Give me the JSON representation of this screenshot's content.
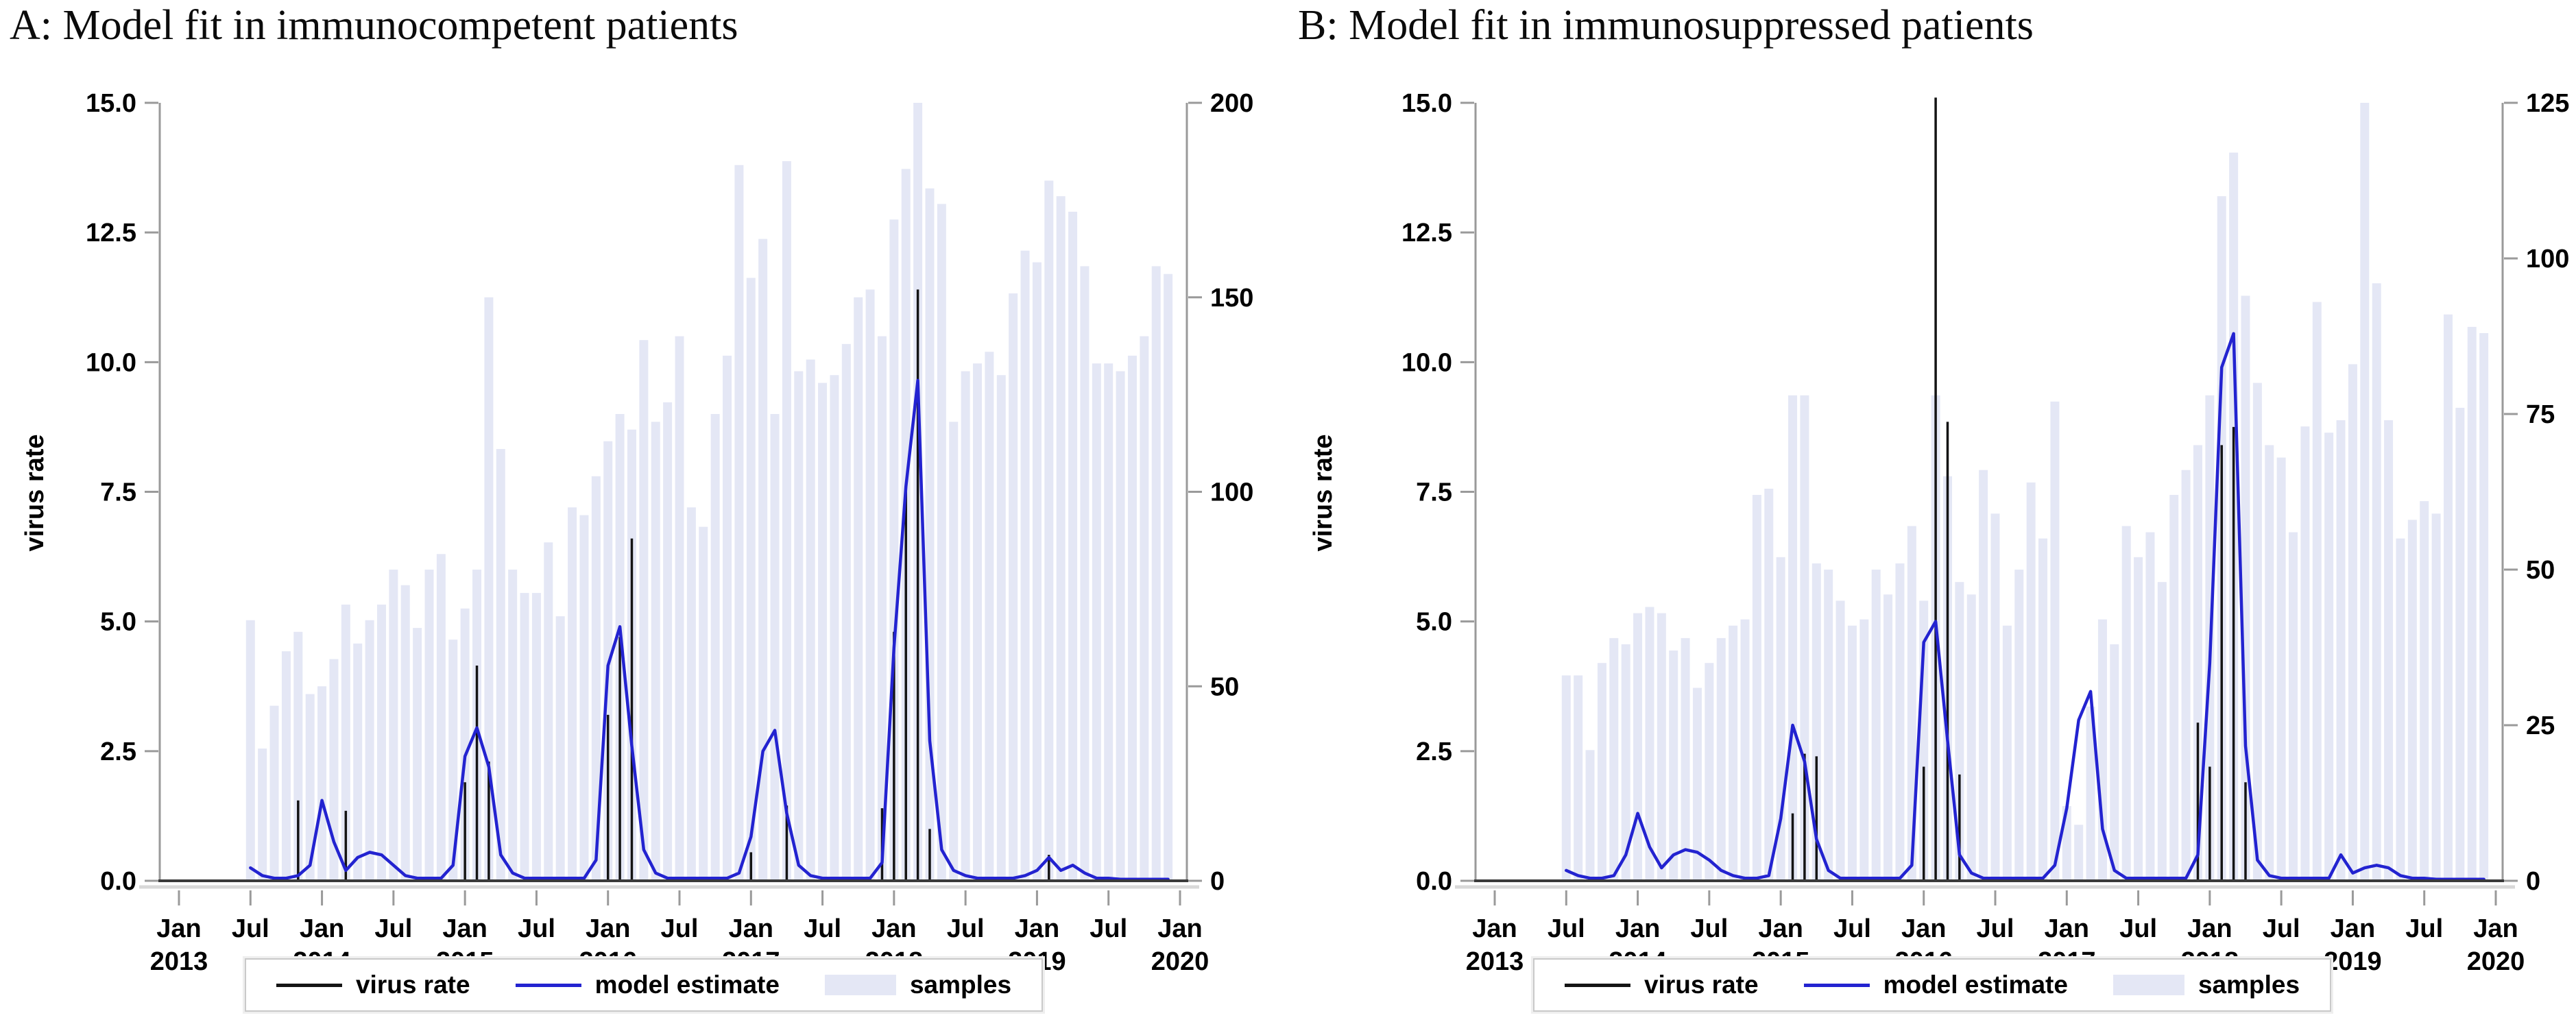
{
  "colors": {
    "samples_bar": "#e4e7f5",
    "virus_rate": "#141414",
    "model_estimate": "#2323d0",
    "axis": "#9a9a9a",
    "baseline": "#3a3a3a",
    "baseline_shadow": "#d8d8d8",
    "text": "#000000"
  },
  "legend": {
    "items": [
      {
        "label": "virus rate",
        "swatch": "line",
        "color": "#141414"
      },
      {
        "label": "model estimate",
        "swatch": "line",
        "color": "#2323d0"
      },
      {
        "label": "samples",
        "swatch": "patch",
        "color": "#e4e7f5"
      }
    ]
  },
  "chart_data": [
    {
      "type": "bar",
      "subtype": "combo-bar-spike-line",
      "title": "A: Model fit in immunocompetent patients",
      "ylabel": "virus rate",
      "ylim_left": [
        0,
        15
      ],
      "ylim_right": [
        0,
        200
      ],
      "y_ticks_left": [
        "0.0",
        "2.5",
        "5.0",
        "7.5",
        "10.0",
        "12.5",
        "15.0"
      ],
      "y_ticks_right": [
        "0",
        "50",
        "100",
        "150",
        "200"
      ],
      "x_range": [
        "2013-01",
        "2020-01"
      ],
      "x_tick_labels": [
        {
          "month": "Jan",
          "year": "2013"
        },
        {
          "month": "Jul"
        },
        {
          "month": "Jan",
          "year": "2014"
        },
        {
          "month": "Jul"
        },
        {
          "month": "Jan",
          "year": "2015"
        },
        {
          "month": "Jul"
        },
        {
          "month": "Jan",
          "year": "2016"
        },
        {
          "month": "Jul"
        },
        {
          "month": "Jan",
          "year": "2017"
        },
        {
          "month": "Jul"
        },
        {
          "month": "Jan",
          "year": "2018"
        },
        {
          "month": "Jul"
        },
        {
          "month": "Jan",
          "year": "2019"
        },
        {
          "month": "Jul"
        },
        {
          "month": "Jan",
          "year": "2020"
        }
      ],
      "months": [
        "2013-07",
        "2013-08",
        "2013-09",
        "2013-10",
        "2013-11",
        "2013-12",
        "2014-01",
        "2014-02",
        "2014-03",
        "2014-04",
        "2014-05",
        "2014-06",
        "2014-07",
        "2014-08",
        "2014-09",
        "2014-10",
        "2014-11",
        "2014-12",
        "2015-01",
        "2015-02",
        "2015-03",
        "2015-04",
        "2015-05",
        "2015-06",
        "2015-07",
        "2015-08",
        "2015-09",
        "2015-10",
        "2015-11",
        "2015-12",
        "2016-01",
        "2016-02",
        "2016-03",
        "2016-04",
        "2016-05",
        "2016-06",
        "2016-07",
        "2016-08",
        "2016-09",
        "2016-10",
        "2016-11",
        "2016-12",
        "2017-01",
        "2017-02",
        "2017-03",
        "2017-04",
        "2017-05",
        "2017-06",
        "2017-07",
        "2017-08",
        "2017-09",
        "2017-10",
        "2017-11",
        "2017-12",
        "2018-01",
        "2018-02",
        "2018-03",
        "2018-04",
        "2018-05",
        "2018-06",
        "2018-07",
        "2018-08",
        "2018-09",
        "2018-10",
        "2018-11",
        "2018-12",
        "2019-01",
        "2019-02",
        "2019-03",
        "2019-04",
        "2019-05",
        "2019-06",
        "2019-07",
        "2019-08",
        "2019-09",
        "2019-10",
        "2019-11",
        "2019-12"
      ],
      "series": [
        {
          "name": "samples",
          "kind": "column",
          "axis": "right",
          "values": [
            67,
            34,
            45,
            59,
            64,
            48,
            50,
            57,
            71,
            61,
            67,
            71,
            80,
            76,
            65,
            80,
            84,
            62,
            70,
            80,
            150,
            111,
            80,
            74,
            74,
            87,
            68,
            96,
            94,
            104,
            113,
            120,
            116,
            139,
            118,
            123,
            140,
            96,
            91,
            120,
            135,
            184,
            155,
            165,
            120,
            185,
            131,
            134,
            128,
            130,
            138,
            150,
            152,
            140,
            170,
            183,
            200,
            178,
            174,
            118,
            131,
            133,
            136,
            130,
            151,
            162,
            159,
            180,
            176,
            172,
            158,
            133,
            133,
            131,
            135,
            140,
            158,
            156
          ]
        },
        {
          "name": "virus rate",
          "kind": "spike",
          "axis": "left",
          "values": [
            0,
            0,
            0,
            0,
            1.55,
            0,
            0,
            0,
            1.35,
            0,
            0,
            0,
            0,
            0,
            0,
            0,
            0,
            0,
            1.9,
            4.15,
            2.3,
            0,
            0,
            0,
            0,
            0,
            0,
            0,
            0,
            0,
            3.2,
            4.7,
            6.6,
            0,
            0,
            0,
            0,
            0,
            0,
            0,
            0,
            0,
            0.55,
            0,
            0,
            1.45,
            0,
            0,
            0,
            0,
            0,
            0,
            0,
            1.4,
            4.8,
            7.6,
            11.4,
            1.0,
            0,
            0,
            0,
            0,
            0,
            0,
            0,
            0,
            0,
            0.5,
            0,
            0,
            0,
            0,
            0,
            0,
            0,
            0,
            0,
            0
          ]
        },
        {
          "name": "model estimate",
          "kind": "line",
          "axis": "left",
          "values": [
            0.25,
            0.1,
            0.05,
            0.05,
            0.1,
            0.3,
            1.55,
            0.75,
            0.2,
            0.45,
            0.55,
            0.5,
            0.3,
            0.1,
            0.05,
            0.05,
            0.05,
            0.3,
            2.4,
            2.95,
            2.2,
            0.5,
            0.15,
            0.05,
            0.05,
            0.05,
            0.05,
            0.05,
            0.05,
            0.4,
            4.15,
            4.9,
            2.6,
            0.6,
            0.15,
            0.05,
            0.05,
            0.05,
            0.05,
            0.05,
            0.05,
            0.15,
            0.85,
            2.5,
            2.9,
            1.3,
            0.3,
            0.1,
            0.05,
            0.05,
            0.05,
            0.05,
            0.05,
            0.35,
            4.5,
            7.6,
            9.65,
            2.7,
            0.6,
            0.2,
            0.1,
            0.05,
            0.05,
            0.05,
            0.05,
            0.1,
            0.2,
            0.45,
            0.2,
            0.3,
            0.15,
            0.05,
            0.05,
            0.03,
            0.03,
            0.03,
            0.03,
            0.03
          ]
        }
      ],
      "grid": false,
      "legend_position": "bottom"
    },
    {
      "type": "bar",
      "subtype": "combo-bar-spike-line",
      "title": "B: Model fit in immunosuppressed patients",
      "ylabel": "virus rate",
      "ylim_left": [
        0,
        15
      ],
      "ylim_right": [
        0,
        125
      ],
      "y_ticks_left": [
        "0.0",
        "2.5",
        "5.0",
        "7.5",
        "10.0",
        "12.5",
        "15.0"
      ],
      "y_ticks_right": [
        "0",
        "25",
        "50",
        "75",
        "100",
        "125"
      ],
      "x_range": [
        "2013-01",
        "2020-01"
      ],
      "x_tick_labels": [
        {
          "month": "Jan",
          "year": "2013"
        },
        {
          "month": "Jul"
        },
        {
          "month": "Jan",
          "year": "2014"
        },
        {
          "month": "Jul"
        },
        {
          "month": "Jan",
          "year": "2015"
        },
        {
          "month": "Jul"
        },
        {
          "month": "Jan",
          "year": "2016"
        },
        {
          "month": "Jul"
        },
        {
          "month": "Jan",
          "year": "2017"
        },
        {
          "month": "Jul"
        },
        {
          "month": "Jan",
          "year": "2018"
        },
        {
          "month": "Jul"
        },
        {
          "month": "Jan",
          "year": "2019"
        },
        {
          "month": "Jul"
        },
        {
          "month": "Jan",
          "year": "2020"
        }
      ],
      "months": [
        "2013-07",
        "2013-08",
        "2013-09",
        "2013-10",
        "2013-11",
        "2013-12",
        "2014-01",
        "2014-02",
        "2014-03",
        "2014-04",
        "2014-05",
        "2014-06",
        "2014-07",
        "2014-08",
        "2014-09",
        "2014-10",
        "2014-11",
        "2014-12",
        "2015-01",
        "2015-02",
        "2015-03",
        "2015-04",
        "2015-05",
        "2015-06",
        "2015-07",
        "2015-08",
        "2015-09",
        "2015-10",
        "2015-11",
        "2015-12",
        "2016-01",
        "2016-02",
        "2016-03",
        "2016-04",
        "2016-05",
        "2016-06",
        "2016-07",
        "2016-08",
        "2016-09",
        "2016-10",
        "2016-11",
        "2016-12",
        "2017-01",
        "2017-02",
        "2017-03",
        "2017-04",
        "2017-05",
        "2017-06",
        "2017-07",
        "2017-08",
        "2017-09",
        "2017-10",
        "2017-11",
        "2017-12",
        "2018-01",
        "2018-02",
        "2018-03",
        "2018-04",
        "2018-05",
        "2018-06",
        "2018-07",
        "2018-08",
        "2018-09",
        "2018-10",
        "2018-11",
        "2018-12",
        "2019-01",
        "2019-02",
        "2019-03",
        "2019-04",
        "2019-05",
        "2019-06",
        "2019-07",
        "2019-08",
        "2019-09",
        "2019-10",
        "2019-11",
        "2019-12"
      ],
      "series": [
        {
          "name": "samples",
          "kind": "column",
          "axis": "right",
          "values": [
            33,
            33,
            21,
            35,
            39,
            38,
            43,
            44,
            43,
            37,
            39,
            31,
            35,
            39,
            41,
            42,
            62,
            63,
            52,
            78,
            78,
            51,
            50,
            45,
            41,
            42,
            50,
            46,
            51,
            57,
            45,
            78,
            65,
            48,
            46,
            66,
            59,
            41,
            50,
            64,
            55,
            77,
            12,
            9,
            28,
            42,
            38,
            57,
            52,
            56,
            48,
            62,
            66,
            70,
            78,
            110,
            117,
            94,
            80,
            70,
            68,
            56,
            73,
            93,
            72,
            74,
            83,
            125,
            96,
            74,
            55,
            58,
            61,
            59,
            91,
            76,
            89,
            88
          ]
        },
        {
          "name": "virus rate",
          "kind": "spike",
          "axis": "left",
          "values": [
            0,
            0,
            0,
            0,
            0,
            0,
            0,
            0,
            0,
            0,
            0,
            0,
            0,
            0,
            0,
            0,
            0,
            0,
            0,
            1.3,
            2.45,
            2.4,
            0,
            0,
            0,
            0,
            0,
            0,
            0,
            0,
            2.2,
            15.1,
            8.85,
            2.05,
            0,
            0,
            0,
            0,
            0,
            0,
            0,
            0,
            0,
            0,
            0,
            0,
            0,
            0,
            0,
            0,
            0,
            0,
            0,
            3.05,
            2.2,
            8.4,
            8.75,
            1.9,
            0,
            0,
            0,
            0,
            0,
            0,
            0,
            0,
            0,
            0,
            0,
            0,
            0,
            0,
            0,
            0,
            0,
            0,
            0,
            0
          ]
        },
        {
          "name": "model estimate",
          "kind": "line",
          "axis": "left",
          "values": [
            0.2,
            0.1,
            0.05,
            0.05,
            0.1,
            0.5,
            1.3,
            0.65,
            0.25,
            0.5,
            0.6,
            0.55,
            0.4,
            0.2,
            0.1,
            0.05,
            0.05,
            0.1,
            1.2,
            3.0,
            2.3,
            0.8,
            0.2,
            0.05,
            0.05,
            0.05,
            0.05,
            0.05,
            0.05,
            0.3,
            4.6,
            5.0,
            2.7,
            0.5,
            0.15,
            0.05,
            0.05,
            0.05,
            0.05,
            0.05,
            0.05,
            0.3,
            1.4,
            3.1,
            3.65,
            1.0,
            0.2,
            0.05,
            0.05,
            0.05,
            0.05,
            0.05,
            0.05,
            0.5,
            4.2,
            9.9,
            10.55,
            2.6,
            0.4,
            0.1,
            0.05,
            0.05,
            0.05,
            0.05,
            0.05,
            0.5,
            0.15,
            0.25,
            0.3,
            0.25,
            0.1,
            0.05,
            0.05,
            0.03,
            0.03,
            0.03,
            0.03,
            0.03
          ]
        }
      ],
      "grid": false,
      "legend_position": "bottom"
    }
  ]
}
